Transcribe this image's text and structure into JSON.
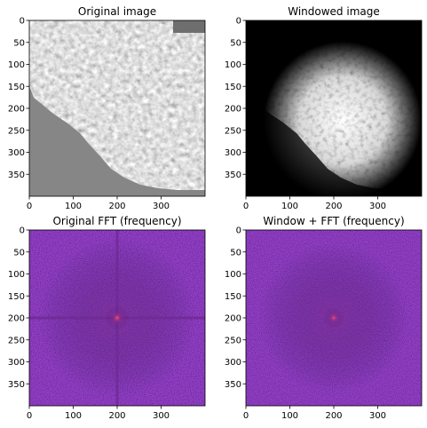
{
  "chart_data": [
    {
      "type": "heatmap",
      "title": "Original image",
      "colormap": "gray",
      "xlim": [
        0,
        400
      ],
      "ylim": [
        400,
        0
      ],
      "xticks": [
        0,
        100,
        200,
        300
      ],
      "yticks": [
        0,
        50,
        100,
        150,
        200,
        250,
        300,
        350
      ],
      "content": "micrograph of textured tissue, upper-right region; lower-left region flat mid-gray"
    },
    {
      "type": "heatmap",
      "title": "Windowed image",
      "colormap": "gray",
      "xlim": [
        0,
        400
      ],
      "ylim": [
        400,
        0
      ],
      "xticks": [
        0,
        100,
        200,
        300
      ],
      "yticks": [
        0,
        50,
        100,
        150,
        200,
        250,
        300,
        350
      ],
      "content": "same image multiplied by a circular window; bright textured center fading to black edges"
    },
    {
      "type": "heatmap",
      "title": "Original FFT (frequency)",
      "colormap": "magma",
      "xlim": [
        0,
        400
      ],
      "ylim": [
        400,
        0
      ],
      "xticks": [
        0,
        100,
        200,
        300
      ],
      "yticks": [
        0,
        50,
        100,
        150,
        200,
        250,
        300,
        350
      ],
      "peak": [
        200,
        200
      ],
      "content": "log-magnitude spectrum with bright center peak and strong horizontal and vertical cross artifacts"
    },
    {
      "type": "heatmap",
      "title": "Window + FFT (frequency)",
      "colormap": "magma",
      "xlim": [
        0,
        400
      ],
      "ylim": [
        400,
        0
      ],
      "xticks": [
        0,
        100,
        200,
        300
      ],
      "yticks": [
        0,
        50,
        100,
        150,
        200,
        250,
        300,
        350
      ],
      "peak": [
        200,
        200
      ],
      "content": "log-magnitude spectrum with bright center peak, no cross artifacts"
    }
  ],
  "colors": {
    "gray_flat": "#858585",
    "magma_dark": "#1a0c3c",
    "magma_mid": "#5b2a8a",
    "magma_peak": "#ff6a3a"
  }
}
